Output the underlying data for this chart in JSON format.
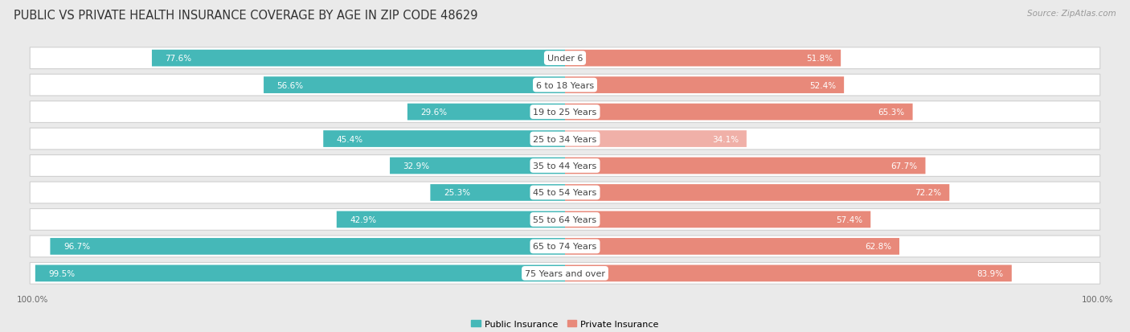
{
  "title": "PUBLIC VS PRIVATE HEALTH INSURANCE COVERAGE BY AGE IN ZIP CODE 48629",
  "source": "Source: ZipAtlas.com",
  "categories": [
    "Under 6",
    "6 to 18 Years",
    "19 to 25 Years",
    "25 to 34 Years",
    "35 to 44 Years",
    "45 to 54 Years",
    "55 to 64 Years",
    "65 to 74 Years",
    "75 Years and over"
  ],
  "public_values": [
    77.6,
    56.6,
    29.6,
    45.4,
    32.9,
    25.3,
    42.9,
    96.7,
    99.5
  ],
  "private_values": [
    51.8,
    52.4,
    65.3,
    34.1,
    67.7,
    72.2,
    57.4,
    62.8,
    83.9
  ],
  "public_color": "#45b8b8",
  "private_color": "#e8897a",
  "private_color_light": "#f0b0a8",
  "bg_color": "#eaeaea",
  "bar_bg_color": "#ffffff",
  "title_fontsize": 10.5,
  "source_fontsize": 7.5,
  "label_fontsize": 8,
  "value_fontsize": 7.5,
  "axis_max": 100.0,
  "legend_label_public": "Public Insurance",
  "legend_label_private": "Private Insurance",
  "pub_inside_threshold": 12,
  "priv_inside_threshold": 12
}
